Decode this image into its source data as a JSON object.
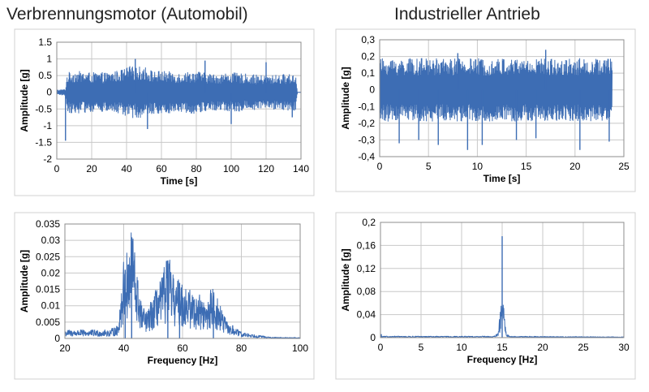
{
  "headings": {
    "left": "Verbrennungsmotor (Automobil)",
    "right": "Industrieller Antrieb"
  },
  "colors": {
    "series": "#3d6db4",
    "grid": "#c8c8c8",
    "frame": "#8c8c8c",
    "outer_border": "#d0d0d0"
  },
  "chart_data": [
    {
      "id": "engine-time",
      "type": "line",
      "xlabel": "Time [s]",
      "ylabel": "Amplitude [g]",
      "xlim": [
        0,
        140
      ],
      "ylim": [
        -2,
        1.5
      ],
      "xticks": [
        "0",
        "20",
        "40",
        "60",
        "80",
        "100",
        "120",
        "140"
      ],
      "yticks": [
        "1.5",
        "1",
        "0.5",
        "0",
        "-0.5",
        "-1",
        "-1.5",
        "-2"
      ],
      "grid": "both",
      "signal": {
        "x_start": 0,
        "x_end": 140,
        "envelope": [
          [
            0,
            0.08
          ],
          [
            5,
            0.1
          ],
          [
            6,
            0.6
          ],
          [
            10,
            0.65
          ],
          [
            20,
            0.6
          ],
          [
            30,
            0.6
          ],
          [
            38,
            0.7
          ],
          [
            42,
            0.8
          ],
          [
            45,
            0.75
          ],
          [
            50,
            0.8
          ],
          [
            55,
            0.65
          ],
          [
            60,
            0.65
          ],
          [
            70,
            0.6
          ],
          [
            80,
            0.65
          ],
          [
            90,
            0.55
          ],
          [
            100,
            0.6
          ],
          [
            110,
            0.55
          ],
          [
            120,
            0.5
          ],
          [
            130,
            0.55
          ],
          [
            137,
            0.55
          ],
          [
            138,
            0.0
          ],
          [
            140,
            0.0
          ]
        ],
        "peaks": [
          [
            5,
            -1.45
          ],
          [
            45,
            1.0
          ],
          [
            52,
            -1.1
          ],
          [
            85,
            0.95
          ],
          [
            100,
            -0.95
          ],
          [
            120,
            0.9
          ],
          [
            135,
            -0.75
          ]
        ]
      }
    },
    {
      "id": "drive-time",
      "type": "line",
      "xlabel": "Time [s]",
      "ylabel": "Amplitude [g]",
      "xlim": [
        0,
        25
      ],
      "ylim": [
        -0.4,
        0.3
      ],
      "xticks": [
        "0",
        "5",
        "10",
        "15",
        "20",
        "25"
      ],
      "yticks": [
        "0,3",
        "0,2",
        "0,1",
        "0",
        "-0,1",
        "-0,2",
        "-0,3",
        "-0,4"
      ],
      "grid": "both",
      "signal": {
        "x_start": 0,
        "x_end": 23.8,
        "envelope": [
          [
            0,
            0.19
          ],
          [
            12,
            0.19
          ],
          [
            23.8,
            0.19
          ]
        ],
        "peaks": [
          [
            2,
            -0.32
          ],
          [
            4,
            -0.3
          ],
          [
            6,
            -0.33
          ],
          [
            9,
            -0.36
          ],
          [
            10.5,
            -0.33
          ],
          [
            14,
            -0.3
          ],
          [
            16,
            -0.29
          ],
          [
            20.5,
            -0.36
          ],
          [
            23.5,
            -0.31
          ],
          [
            8,
            0.22
          ],
          [
            17,
            0.24
          ]
        ]
      }
    },
    {
      "id": "engine-spectrum",
      "type": "line",
      "xlabel": "Frequency [Hz]",
      "ylabel": "Amplitude [g]",
      "xlim": [
        20,
        100
      ],
      "ylim": [
        0,
        0.035
      ],
      "xticks": [
        "20",
        "40",
        "60",
        "80",
        "100"
      ],
      "yticks": [
        "0.035",
        "0.03",
        "0.025",
        "0.02",
        "0.015",
        "0.01",
        "0.005",
        "0"
      ],
      "grid": "both",
      "signal": {
        "x_start": 20,
        "x_end": 100,
        "envelope": [
          [
            20,
            0.002
          ],
          [
            35,
            0.002
          ],
          [
            38,
            0.003
          ],
          [
            40,
            0.018
          ],
          [
            42,
            0.021
          ],
          [
            43,
            0.028
          ],
          [
            44,
            0.018
          ],
          [
            46,
            0.008
          ],
          [
            48,
            0.006
          ],
          [
            50,
            0.01
          ],
          [
            53,
            0.014
          ],
          [
            55,
            0.02
          ],
          [
            57,
            0.014
          ],
          [
            60,
            0.013
          ],
          [
            63,
            0.011
          ],
          [
            66,
            0.01
          ],
          [
            68,
            0.008
          ],
          [
            70,
            0.012
          ],
          [
            72,
            0.009
          ],
          [
            75,
            0.004
          ],
          [
            80,
            0.0015
          ],
          [
            90,
            0.0003
          ],
          [
            100,
            0.0002
          ]
        ],
        "peaks": [
          [
            42.7,
            0.029
          ],
          [
            40.5,
            0.021
          ],
          [
            55,
            0.0205
          ],
          [
            59,
            0.017
          ],
          [
            70.5,
            0.013
          ]
        ]
      }
    },
    {
      "id": "drive-spectrum",
      "type": "line",
      "xlabel": "Frequency [Hz]",
      "ylabel": "Amplitude [g]",
      "xlim": [
        0,
        30
      ],
      "ylim": [
        0,
        0.2
      ],
      "xticks": [
        "0",
        "5",
        "10",
        "15",
        "20",
        "25",
        "30"
      ],
      "yticks": [
        "0,2",
        "0,16",
        "0,12",
        "0,08",
        "0,04",
        "0"
      ],
      "grid": "both",
      "signal": {
        "x_start": 0,
        "x_end": 30,
        "envelope": [
          [
            0,
            0.002
          ],
          [
            14,
            0.002
          ],
          [
            14.5,
            0.006
          ],
          [
            15,
            0.06
          ],
          [
            15.5,
            0.006
          ],
          [
            16,
            0.002
          ],
          [
            30,
            0.001
          ]
        ],
        "peaks": [
          [
            15,
            0.176
          ],
          [
            0.1,
            0.006
          ]
        ]
      }
    }
  ]
}
